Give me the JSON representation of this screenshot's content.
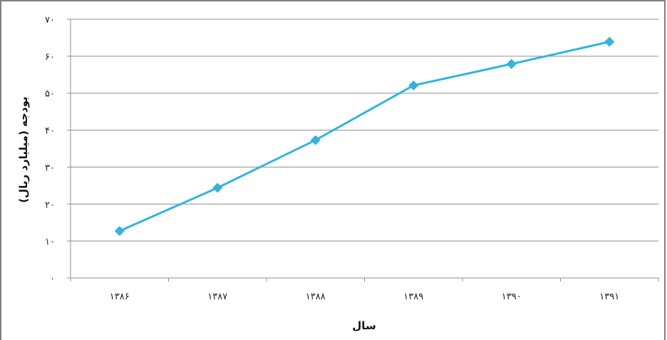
{
  "chart_data": {
    "type": "line",
    "categories": [
      "۱۳۸۶",
      "۱۳۸۷",
      "۱۳۸۸",
      "۱۳۸۹",
      "۱۳۹۰",
      "۱۳۹۱"
    ],
    "series": [
      {
        "values": [
          12.7,
          24.4,
          37.3,
          52.1,
          57.9,
          63.9
        ]
      }
    ],
    "xlabel": "سال",
    "ylabel": "بودجه (میلیارد ریال)",
    "ylim": [
      0,
      70
    ],
    "yticks": [
      0,
      10,
      20,
      30,
      40,
      50,
      60,
      70
    ],
    "ytick_labels": [
      "۰",
      "۱۰",
      "۲۰",
      "۳۰",
      "۴۰",
      "۵۰",
      "۶۰",
      "۷۰"
    ],
    "grid": "horizontal",
    "legend": "none",
    "line_color": "#33b3dd",
    "marker": "diamond",
    "grid_color": "#8c8c8c"
  }
}
